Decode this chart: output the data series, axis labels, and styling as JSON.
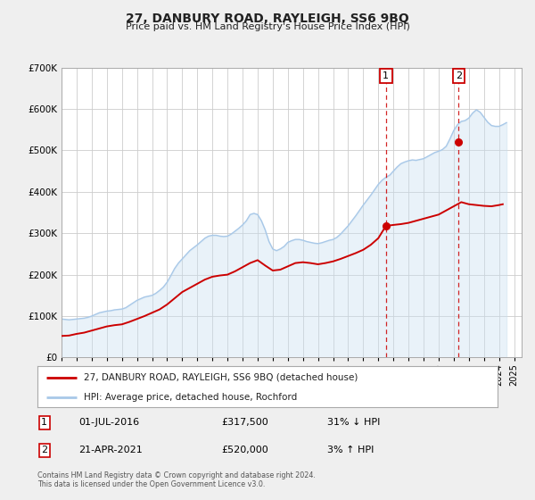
{
  "title": "27, DANBURY ROAD, RAYLEIGH, SS6 9BQ",
  "subtitle": "Price paid vs. HM Land Registry's House Price Index (HPI)",
  "bg_color": "#efefef",
  "plot_bg_color": "#ffffff",
  "grid_color": "#cccccc",
  "hpi_color": "#a8c8e8",
  "hpi_fill_color": "#c8dff0",
  "price_color": "#cc0000",
  "ylim": [
    0,
    700000
  ],
  "yticks": [
    0,
    100000,
    200000,
    300000,
    400000,
    500000,
    600000,
    700000
  ],
  "xlim_start": 1995.0,
  "xlim_end": 2025.5,
  "marker1_x": 2016.5,
  "marker1_y": 317500,
  "marker2_x": 2021.33,
  "marker2_y": 520000,
  "sale1_date": "01-JUL-2016",
  "sale1_price": "£317,500",
  "sale1_hpi": "31% ↓ HPI",
  "sale2_date": "21-APR-2021",
  "sale2_price": "£520,000",
  "sale2_hpi": "3% ↑ HPI",
  "legend_line1": "27, DANBURY ROAD, RAYLEIGH, SS6 9BQ (detached house)",
  "legend_line2": "HPI: Average price, detached house, Rochford",
  "footnote": "Contains HM Land Registry data © Crown copyright and database right 2024.\nThis data is licensed under the Open Government Licence v3.0.",
  "hpi_data_x": [
    1995.0,
    1995.25,
    1995.5,
    1995.75,
    1996.0,
    1996.25,
    1996.5,
    1996.75,
    1997.0,
    1997.25,
    1997.5,
    1997.75,
    1998.0,
    1998.25,
    1998.5,
    1998.75,
    1999.0,
    1999.25,
    1999.5,
    1999.75,
    2000.0,
    2000.25,
    2000.5,
    2000.75,
    2001.0,
    2001.25,
    2001.5,
    2001.75,
    2002.0,
    2002.25,
    2002.5,
    2002.75,
    2003.0,
    2003.25,
    2003.5,
    2003.75,
    2004.0,
    2004.25,
    2004.5,
    2004.75,
    2005.0,
    2005.25,
    2005.5,
    2005.75,
    2006.0,
    2006.25,
    2006.5,
    2006.75,
    2007.0,
    2007.25,
    2007.5,
    2007.75,
    2008.0,
    2008.25,
    2008.5,
    2008.75,
    2009.0,
    2009.25,
    2009.5,
    2009.75,
    2010.0,
    2010.25,
    2010.5,
    2010.75,
    2011.0,
    2011.25,
    2011.5,
    2011.75,
    2012.0,
    2012.25,
    2012.5,
    2012.75,
    2013.0,
    2013.25,
    2013.5,
    2013.75,
    2014.0,
    2014.25,
    2014.5,
    2014.75,
    2015.0,
    2015.25,
    2015.5,
    2015.75,
    2016.0,
    2016.25,
    2016.5,
    2016.75,
    2017.0,
    2017.25,
    2017.5,
    2017.75,
    2018.0,
    2018.25,
    2018.5,
    2018.75,
    2019.0,
    2019.25,
    2019.5,
    2019.75,
    2020.0,
    2020.25,
    2020.5,
    2020.75,
    2021.0,
    2021.25,
    2021.5,
    2021.75,
    2022.0,
    2022.25,
    2022.5,
    2022.75,
    2023.0,
    2023.25,
    2023.5,
    2023.75,
    2024.0,
    2024.25,
    2024.5
  ],
  "hpi_data_y": [
    93000,
    92000,
    91000,
    92000,
    93000,
    94000,
    95000,
    97000,
    100000,
    104000,
    108000,
    110000,
    112000,
    113000,
    115000,
    116000,
    117000,
    120000,
    126000,
    132000,
    138000,
    142000,
    146000,
    148000,
    150000,
    155000,
    162000,
    170000,
    182000,
    198000,
    215000,
    228000,
    238000,
    248000,
    258000,
    265000,
    272000,
    280000,
    288000,
    293000,
    295000,
    295000,
    293000,
    292000,
    293000,
    298000,
    305000,
    312000,
    320000,
    330000,
    345000,
    348000,
    345000,
    330000,
    308000,
    280000,
    262000,
    258000,
    262000,
    268000,
    278000,
    282000,
    285000,
    285000,
    283000,
    280000,
    278000,
    276000,
    275000,
    277000,
    280000,
    283000,
    285000,
    290000,
    298000,
    308000,
    318000,
    330000,
    342000,
    355000,
    368000,
    380000,
    392000,
    405000,
    418000,
    428000,
    435000,
    440000,
    450000,
    460000,
    468000,
    472000,
    475000,
    477000,
    476000,
    478000,
    480000,
    485000,
    490000,
    495000,
    498000,
    502000,
    510000,
    528000,
    548000,
    562000,
    570000,
    572000,
    578000,
    590000,
    598000,
    592000,
    580000,
    568000,
    560000,
    558000,
    558000,
    562000,
    567000
  ],
  "price_data_x": [
    1995.0,
    1995.5,
    1996.0,
    1996.5,
    1997.0,
    1997.5,
    1998.0,
    1998.5,
    1999.0,
    1999.5,
    2000.0,
    2000.5,
    2001.0,
    2001.5,
    2002.0,
    2002.5,
    2003.0,
    2003.5,
    2004.0,
    2004.5,
    2005.0,
    2005.5,
    2006.0,
    2006.5,
    2007.0,
    2007.5,
    2008.0,
    2008.5,
    2009.0,
    2009.5,
    2010.0,
    2010.5,
    2011.0,
    2011.5,
    2012.0,
    2012.5,
    2013.0,
    2013.5,
    2014.0,
    2014.5,
    2015.0,
    2015.5,
    2016.0,
    2016.5,
    2017.0,
    2017.5,
    2018.0,
    2018.5,
    2019.0,
    2019.5,
    2020.0,
    2020.5,
    2021.0,
    2021.5,
    2022.0,
    2022.5,
    2023.0,
    2023.5,
    2024.0,
    2024.25
  ],
  "price_data_y": [
    52000,
    53000,
    57000,
    60000,
    65000,
    70000,
    75000,
    78000,
    80000,
    86000,
    93000,
    100000,
    108000,
    116000,
    128000,
    143000,
    158000,
    168000,
    178000,
    188000,
    195000,
    198000,
    200000,
    208000,
    218000,
    228000,
    235000,
    222000,
    210000,
    212000,
    220000,
    228000,
    230000,
    228000,
    225000,
    228000,
    232000,
    238000,
    245000,
    252000,
    260000,
    272000,
    288000,
    317500,
    320000,
    322000,
    325000,
    330000,
    335000,
    340000,
    345000,
    355000,
    365000,
    375000,
    370000,
    368000,
    366000,
    365000,
    368000,
    370000
  ]
}
